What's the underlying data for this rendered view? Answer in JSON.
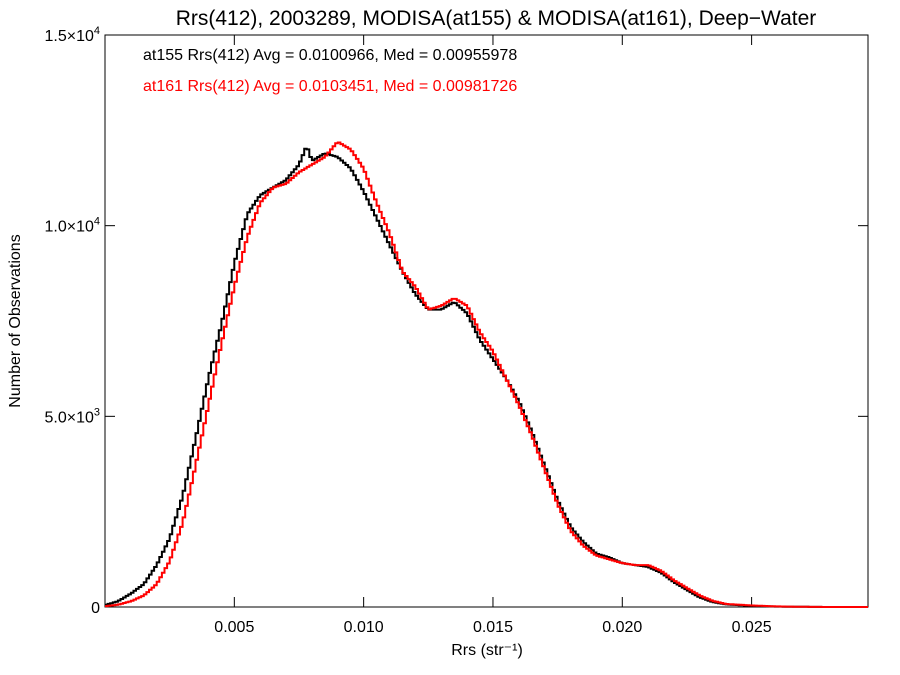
{
  "chart_data": {
    "type": "line",
    "title": "Rrs(412), 2003289, MODISA(at155) & MODISA(at161), Deep−Water",
    "xlabel": "Rrs (str⁻¹)",
    "ylabel": "Number of Observations",
    "xlim": [
      0.0,
      0.0295
    ],
    "ylim": [
      0,
      15000
    ],
    "x_ticks": [
      {
        "value": 0.005,
        "label": "0.005"
      },
      {
        "value": 0.01,
        "label": "0.010"
      },
      {
        "value": 0.015,
        "label": "0.015"
      },
      {
        "value": 0.02,
        "label": "0.020"
      },
      {
        "value": 0.025,
        "label": "0.025"
      }
    ],
    "y_ticks": [
      {
        "value": 0,
        "mantissa": "0",
        "exponent": ""
      },
      {
        "value": 5000,
        "mantissa": "5.0×10",
        "exponent": "3"
      },
      {
        "value": 10000,
        "mantissa": "1.0×10",
        "exponent": "4"
      },
      {
        "value": 15000,
        "mantissa": "1.5×10",
        "exponent": "4"
      }
    ],
    "grid": false,
    "series": [
      {
        "color": "#000000",
        "annotation": "at155 Rrs(412) Avg = 0.0100966, Med = 0.00955978",
        "points": [
          [
            0.0,
            50
          ],
          [
            0.0005,
            150
          ],
          [
            0.001,
            350
          ],
          [
            0.0015,
            600
          ],
          [
            0.002,
            1100
          ],
          [
            0.0025,
            1800
          ],
          [
            0.003,
            2900
          ],
          [
            0.0035,
            4400
          ],
          [
            0.004,
            6000
          ],
          [
            0.0045,
            7400
          ],
          [
            0.005,
            9000
          ],
          [
            0.0055,
            10300
          ],
          [
            0.006,
            10800
          ],
          [
            0.0065,
            11000
          ],
          [
            0.007,
            11200
          ],
          [
            0.0075,
            11600
          ],
          [
            0.0078,
            12100
          ],
          [
            0.008,
            11700
          ],
          [
            0.0085,
            11900
          ],
          [
            0.009,
            11800
          ],
          [
            0.0095,
            11500
          ],
          [
            0.01,
            10900
          ],
          [
            0.0105,
            10200
          ],
          [
            0.011,
            9500
          ],
          [
            0.0115,
            8800
          ],
          [
            0.012,
            8200
          ],
          [
            0.0125,
            7800
          ],
          [
            0.013,
            7800
          ],
          [
            0.0135,
            8000
          ],
          [
            0.014,
            7700
          ],
          [
            0.0145,
            7000
          ],
          [
            0.015,
            6500
          ],
          [
            0.0155,
            6000
          ],
          [
            0.016,
            5400
          ],
          [
            0.0165,
            4600
          ],
          [
            0.017,
            3700
          ],
          [
            0.0175,
            2800
          ],
          [
            0.018,
            2100
          ],
          [
            0.0185,
            1700
          ],
          [
            0.019,
            1400
          ],
          [
            0.0195,
            1300
          ],
          [
            0.02,
            1150
          ],
          [
            0.0205,
            1100
          ],
          [
            0.021,
            1050
          ],
          [
            0.0215,
            900
          ],
          [
            0.022,
            650
          ],
          [
            0.0225,
            450
          ],
          [
            0.023,
            250
          ],
          [
            0.0235,
            130
          ],
          [
            0.024,
            70
          ],
          [
            0.025,
            30
          ],
          [
            0.026,
            10
          ],
          [
            0.027,
            5
          ],
          [
            0.028,
            0
          ],
          [
            0.0295,
            0
          ]
        ]
      },
      {
        "color": "#ff0000",
        "annotation": "at161 Rrs(412) Avg = 0.0103451, Med = 0.00981726",
        "points": [
          [
            0.0,
            20
          ],
          [
            0.0005,
            60
          ],
          [
            0.001,
            150
          ],
          [
            0.0015,
            300
          ],
          [
            0.002,
            600
          ],
          [
            0.0025,
            1200
          ],
          [
            0.003,
            2200
          ],
          [
            0.0035,
            3700
          ],
          [
            0.004,
            5300
          ],
          [
            0.0045,
            6900
          ],
          [
            0.005,
            8400
          ],
          [
            0.0055,
            9700
          ],
          [
            0.006,
            10600
          ],
          [
            0.0065,
            11000
          ],
          [
            0.007,
            11100
          ],
          [
            0.0075,
            11400
          ],
          [
            0.008,
            11600
          ],
          [
            0.0085,
            11800
          ],
          [
            0.009,
            12200
          ],
          [
            0.0095,
            12000
          ],
          [
            0.01,
            11500
          ],
          [
            0.0105,
            10600
          ],
          [
            0.011,
            9800
          ],
          [
            0.0115,
            8800
          ],
          [
            0.012,
            8400
          ],
          [
            0.0125,
            7800
          ],
          [
            0.013,
            7900
          ],
          [
            0.0135,
            8100
          ],
          [
            0.014,
            7900
          ],
          [
            0.0145,
            7200
          ],
          [
            0.015,
            6700
          ],
          [
            0.0155,
            6000
          ],
          [
            0.016,
            5300
          ],
          [
            0.0165,
            4500
          ],
          [
            0.017,
            3600
          ],
          [
            0.0175,
            2700
          ],
          [
            0.018,
            2000
          ],
          [
            0.0185,
            1600
          ],
          [
            0.019,
            1350
          ],
          [
            0.0195,
            1250
          ],
          [
            0.02,
            1150
          ],
          [
            0.0205,
            1100
          ],
          [
            0.021,
            1100
          ],
          [
            0.0215,
            950
          ],
          [
            0.022,
            700
          ],
          [
            0.0225,
            500
          ],
          [
            0.023,
            300
          ],
          [
            0.0235,
            160
          ],
          [
            0.024,
            80
          ],
          [
            0.025,
            40
          ],
          [
            0.026,
            15
          ],
          [
            0.027,
            5
          ],
          [
            0.028,
            0
          ],
          [
            0.0295,
            0
          ]
        ]
      }
    ]
  }
}
